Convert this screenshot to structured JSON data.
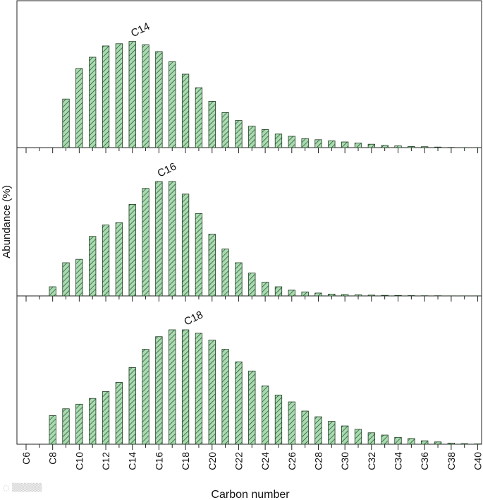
{
  "chart_data": {
    "type": "bar",
    "ylabel": "Abundance (%)",
    "xlabel": "Carbon number",
    "categories": [
      "C6",
      "C7",
      "C8",
      "C9",
      "C10",
      "C11",
      "C12",
      "C13",
      "C14",
      "C15",
      "C16",
      "C17",
      "C18",
      "C19",
      "C20",
      "C21",
      "C22",
      "C23",
      "C24",
      "C25",
      "C26",
      "C27",
      "C28",
      "C29",
      "C30",
      "C31",
      "C32",
      "C33",
      "C34",
      "C35",
      "C36",
      "C37",
      "C38",
      "C39",
      "C40"
    ],
    "tick_labels": [
      "C6",
      "C8",
      "C10",
      "C12",
      "C14",
      "C16",
      "C18",
      "C20",
      "C22",
      "C24",
      "C26",
      "C28",
      "C30",
      "C32",
      "C34",
      "C36",
      "C38",
      "C40"
    ],
    "bar_color": "#a8dcb0",
    "panels": [
      {
        "annotation": "C14",
        "annotation_category": "C14",
        "values": [
          0,
          0,
          0,
          0.43,
          0.7,
          0.8,
          0.9,
          0.92,
          0.94,
          0.91,
          0.85,
          0.76,
          0.65,
          0.53,
          0.41,
          0.31,
          0.24,
          0.19,
          0.16,
          0.12,
          0.1,
          0.08,
          0.07,
          0.06,
          0.05,
          0.04,
          0.03,
          0.02,
          0.015,
          0.01,
          0.008,
          0.005,
          0.002,
          0.001,
          0.001
        ]
      },
      {
        "annotation": "C16",
        "annotation_category": "C16",
        "values": [
          0,
          0,
          0.08,
          0.29,
          0.32,
          0.52,
          0.62,
          0.64,
          0.8,
          0.94,
          1.0,
          1.0,
          0.89,
          0.72,
          0.54,
          0.41,
          0.29,
          0.2,
          0.12,
          0.08,
          0.05,
          0.035,
          0.025,
          0.016,
          0.012,
          0.009,
          0.007,
          0.005,
          0.004,
          0.003,
          0.002,
          0.002,
          0.001,
          0.001,
          0.001
        ]
      },
      {
        "annotation": "C18",
        "annotation_category": "C18",
        "values": [
          0,
          0,
          0.25,
          0.31,
          0.35,
          0.4,
          0.46,
          0.54,
          0.67,
          0.83,
          0.94,
          1.0,
          1.0,
          0.97,
          0.91,
          0.83,
          0.72,
          0.64,
          0.51,
          0.43,
          0.37,
          0.29,
          0.24,
          0.2,
          0.16,
          0.13,
          0.1,
          0.08,
          0.06,
          0.05,
          0.03,
          0.02,
          0.01,
          0.005,
          0.003
        ]
      }
    ]
  }
}
